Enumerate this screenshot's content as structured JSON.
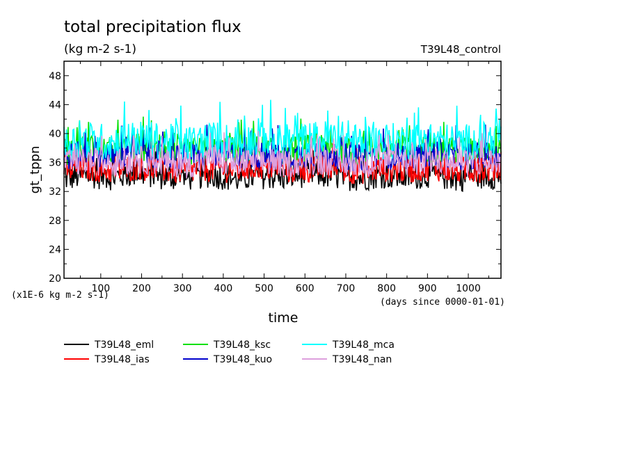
{
  "chart_data": {
    "type": "line",
    "title": "total precipitation flux",
    "subtitle": "(kg m-2 s-1)",
    "run_label": "T39L48_control",
    "xlabel": "time",
    "x_unit_label": "(days since 0000-01-01)",
    "ylabel": "gt_tppn",
    "y_unit_label": "(x1E-6 kg m-2 s-1)",
    "xlim": [
      10,
      1080
    ],
    "ylim": [
      20,
      50
    ],
    "x_ticks": [
      100,
      200,
      300,
      400,
      500,
      600,
      700,
      800,
      900,
      1000
    ],
    "y_ticks": [
      20,
      24,
      28,
      32,
      36,
      40,
      44,
      48
    ],
    "grid": false,
    "legend_position": "bottom",
    "series": [
      {
        "name": "T39L48_eml",
        "color": "#000000",
        "x": [
          10,
          70,
          130,
          190,
          250,
          310,
          370,
          430,
          490,
          550,
          610,
          670,
          730,
          790,
          850,
          910,
          970,
          1030,
          1080
        ],
        "values": [
          33.8,
          34.3,
          34.0,
          34.6,
          34.1,
          33.9,
          34.4,
          33.7,
          34.2,
          34.0,
          34.5,
          34.1,
          33.9,
          34.3,
          34.0,
          34.4,
          33.8,
          34.2,
          34.1
        ]
      },
      {
        "name": "T39L48_ias",
        "color": "#ff0000",
        "x": [
          10,
          70,
          130,
          190,
          250,
          310,
          370,
          430,
          490,
          550,
          610,
          670,
          730,
          790,
          850,
          910,
          970,
          1030,
          1080
        ],
        "values": [
          35.0,
          35.3,
          34.9,
          35.4,
          35.1,
          34.8,
          35.2,
          35.0,
          35.5,
          34.9,
          35.1,
          35.3,
          34.8,
          35.2,
          35.0,
          35.4,
          34.9,
          35.1,
          35.2
        ]
      },
      {
        "name": "T39L48_ksc",
        "color": "#00e000",
        "x": [
          10,
          70,
          130,
          190,
          250,
          310,
          370,
          430,
          490,
          550,
          610,
          670,
          730,
          790,
          850,
          910,
          970,
          1030,
          1080
        ],
        "values": [
          37.5,
          38.0,
          37.6,
          38.2,
          37.8,
          37.4,
          38.1,
          37.7,
          37.9,
          37.6,
          38.0,
          37.8,
          37.5,
          38.1,
          37.7,
          37.9,
          37.6,
          38.0,
          37.8
        ]
      },
      {
        "name": "T39L48_kuo",
        "color": "#0000cc",
        "x": [
          10,
          70,
          130,
          190,
          250,
          310,
          370,
          430,
          490,
          550,
          610,
          670,
          730,
          790,
          850,
          910,
          970,
          1030,
          1080
        ],
        "values": [
          36.8,
          37.2,
          36.9,
          37.4,
          37.0,
          36.7,
          37.3,
          36.9,
          37.1,
          36.8,
          37.2,
          37.0,
          36.6,
          37.1,
          36.9,
          37.3,
          36.8,
          37.0,
          37.2
        ]
      },
      {
        "name": "T39L48_mca",
        "color": "#00ffff",
        "x": [
          10,
          70,
          130,
          190,
          250,
          310,
          370,
          430,
          490,
          550,
          610,
          670,
          730,
          790,
          850,
          910,
          970,
          1030,
          1080
        ],
        "values": [
          38.6,
          39.1,
          38.7,
          39.3,
          38.9,
          38.5,
          39.2,
          38.8,
          39.0,
          38.6,
          39.1,
          39.4,
          38.7,
          39.0,
          38.8,
          39.2,
          38.6,
          39.0,
          39.1
        ]
      },
      {
        "name": "T39L48_nan",
        "color": "#dda0dd",
        "x": [
          10,
          70,
          130,
          190,
          250,
          310,
          370,
          430,
          490,
          550,
          610,
          670,
          730,
          790,
          850,
          910,
          970,
          1030,
          1080
        ],
        "values": [
          35.8,
          36.2,
          35.9,
          36.4,
          36.0,
          35.7,
          36.3,
          35.9,
          36.1,
          35.8,
          36.2,
          36.0,
          35.7,
          36.1,
          35.9,
          36.3,
          35.8,
          36.0,
          36.2
        ]
      }
    ]
  }
}
